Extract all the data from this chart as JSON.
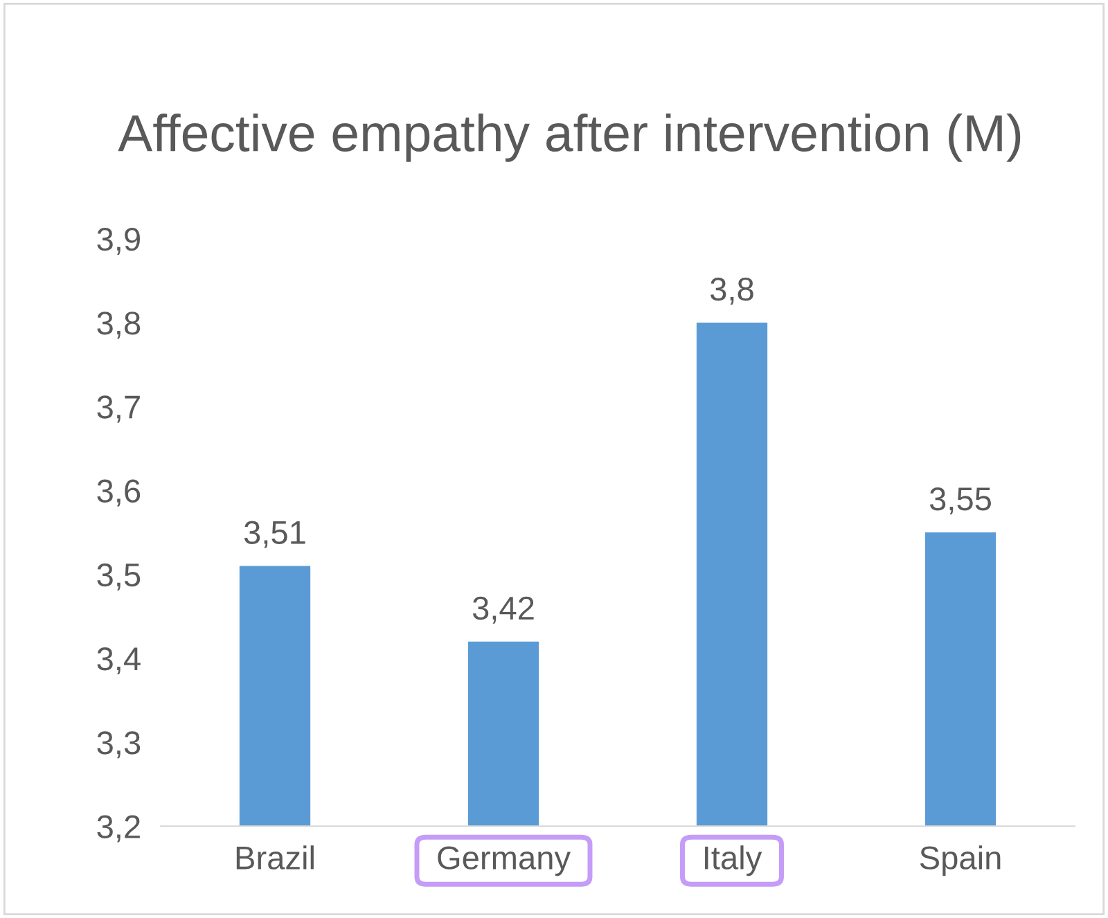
{
  "chart_data": {
    "type": "bar",
    "title": "Affective empathy after intervention (M)",
    "categories": [
      "Brazil",
      "Germany",
      "Italy",
      "Spain"
    ],
    "values": [
      3.51,
      3.42,
      3.8,
      3.55
    ],
    "value_labels": [
      "3,51",
      "3,42",
      "3,8",
      "3,55"
    ],
    "color": "#5b9bd5",
    "ylim": [
      3.2,
      3.9
    ],
    "yticks": [
      {
        "value": 3.2,
        "label": "3,2"
      },
      {
        "value": 3.3,
        "label": "3,3"
      },
      {
        "value": 3.4,
        "label": "3,4"
      },
      {
        "value": 3.5,
        "label": "3,5"
      },
      {
        "value": 3.6,
        "label": "3,6"
      },
      {
        "value": 3.7,
        "label": "3,7"
      },
      {
        "value": 3.8,
        "label": "3,8"
      },
      {
        "value": 3.9,
        "label": "3,9"
      }
    ],
    "grid": false,
    "legend": false
  }
}
